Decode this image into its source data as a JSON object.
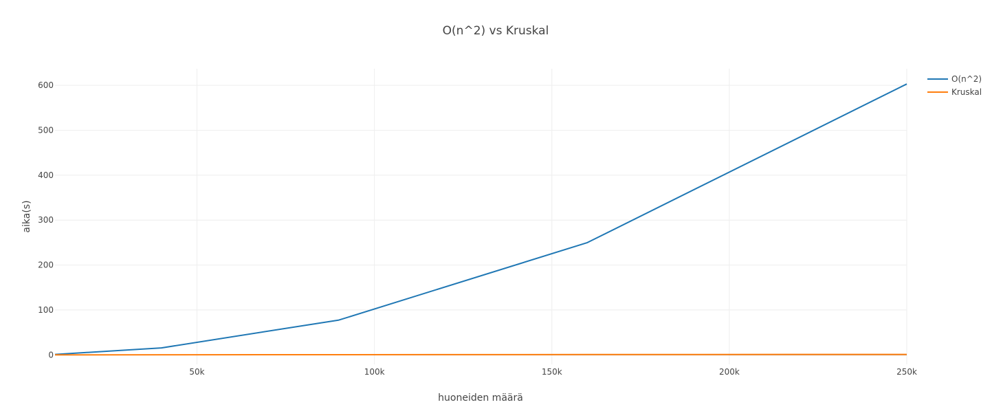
{
  "chart_data": {
    "type": "line",
    "title": "O(n^2) vs Kruskal",
    "xlabel": "huoneiden määrä",
    "ylabel": "aika(s)",
    "xlim": [
      10000,
      250000
    ],
    "ylim": [
      -21,
      637
    ],
    "x_ticks": [
      50000,
      100000,
      150000,
      200000,
      250000
    ],
    "x_tick_labels": [
      "50k",
      "100k",
      "150k",
      "200k",
      "250k"
    ],
    "y_ticks": [
      0,
      100,
      200,
      300,
      400,
      500,
      600
    ],
    "y_tick_labels": [
      "0",
      "100",
      "200",
      "300",
      "400",
      "500",
      "600"
    ],
    "grid": true,
    "legend_position": "top-right",
    "series": [
      {
        "name": "O(n^2)",
        "color": "#1f77b4",
        "x": [
          10000,
          40000,
          90000,
          160000,
          250000
        ],
        "y": [
          1,
          15.5,
          77.5,
          250,
          603
        ]
      },
      {
        "name": "Kruskal",
        "color": "#ff7f0e",
        "x": [
          10000,
          40000,
          90000,
          160000,
          250000
        ],
        "y": [
          0,
          0.2,
          0.4,
          0.7,
          1
        ]
      }
    ]
  }
}
